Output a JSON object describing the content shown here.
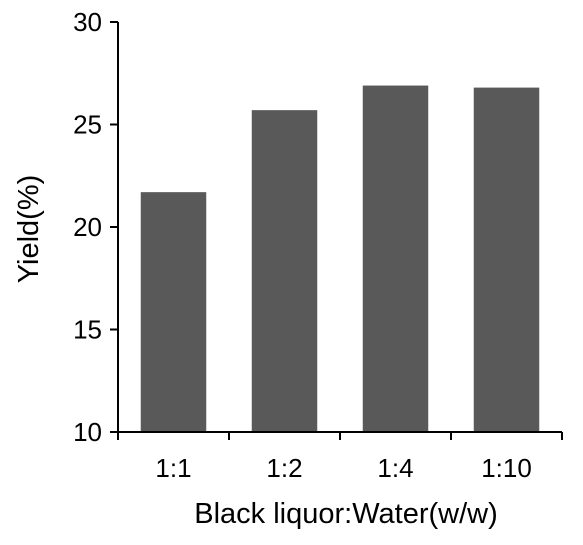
{
  "chart_data": {
    "type": "bar",
    "categories": [
      "1:1",
      "1:2",
      "1:4",
      "1:10"
    ],
    "values": [
      21.7,
      25.7,
      26.9,
      26.8
    ],
    "xlabel": "Black liquor:Water(w/w)",
    "ylabel": "Yield(%)",
    "ylim": [
      10,
      30
    ],
    "yticks": [
      10,
      15,
      20,
      25,
      30
    ],
    "grid": false,
    "legend": "none",
    "bar_color": "#595959",
    "axis_color": "#000000"
  }
}
